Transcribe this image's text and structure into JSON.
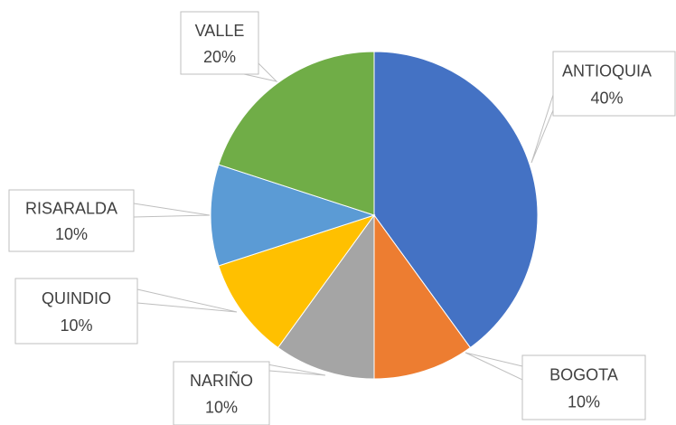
{
  "chart_data": {
    "type": "pie",
    "categories": [
      "ANTIOQUIA",
      "BOGOTA",
      "NARIÑO",
      "QUINDIO",
      "RISARALDA",
      "VALLE"
    ],
    "values": [
      40,
      10,
      10,
      10,
      10,
      20
    ],
    "value_labels": [
      "40%",
      "10%",
      "10%",
      "10%",
      "10%",
      "20%"
    ],
    "colors": [
      "#4472c4",
      "#ed7d31",
      "#a5a5a5",
      "#ffc000",
      "#5b9bd5",
      "#70ad47"
    ]
  }
}
